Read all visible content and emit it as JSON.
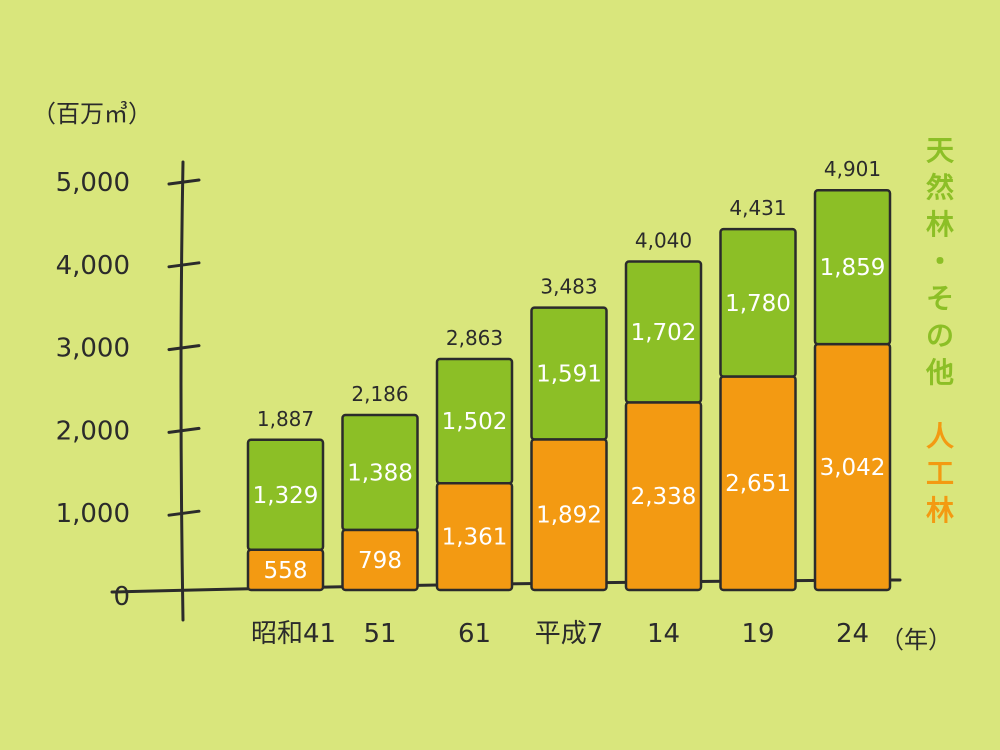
{
  "colors": {
    "background": "#d9e67c",
    "natural": "#8cbf26",
    "planted": "#f39a12",
    "ink": "#2b2b2b"
  },
  "chart_data": {
    "type": "bar",
    "stacked": true,
    "title": "",
    "y_unit": "（百万㎥）",
    "x_unit": "（年）",
    "ylim": [
      0,
      5000
    ],
    "yticks": [
      0,
      1000,
      2000,
      3000,
      4000,
      5000
    ],
    "ytick_labels": [
      "0",
      "1,000",
      "2,000",
      "3,000",
      "4,000",
      "5,000"
    ],
    "categories": [
      "昭和41",
      "51",
      "61",
      "平成7",
      "14",
      "19",
      "24"
    ],
    "series": [
      {
        "name": "人工林",
        "legend_label": "人工林",
        "color": "#f39a12",
        "values": [
          558,
          798,
          1361,
          1892,
          2338,
          2651,
          3042
        ],
        "labels": [
          "558",
          "798",
          "1,361",
          "1,892",
          "2,338",
          "2,651",
          "3,042"
        ]
      },
      {
        "name": "天然林・その他",
        "legend_label": "天然林・その他",
        "color": "#8cbf26",
        "values": [
          1329,
          1388,
          1502,
          1591,
          1702,
          1780,
          1859
        ],
        "labels": [
          "1,329",
          "1,388",
          "1,502",
          "1,591",
          "1,702",
          "1,780",
          "1,859"
        ]
      }
    ],
    "totals": [
      1887,
      2186,
      2863,
      3483,
      4040,
      4431,
      4901
    ],
    "total_labels": [
      "1,887",
      "2,186",
      "2,863",
      "3,483",
      "4,040",
      "4,431",
      "4,901"
    ],
    "legend_placement": "right"
  }
}
